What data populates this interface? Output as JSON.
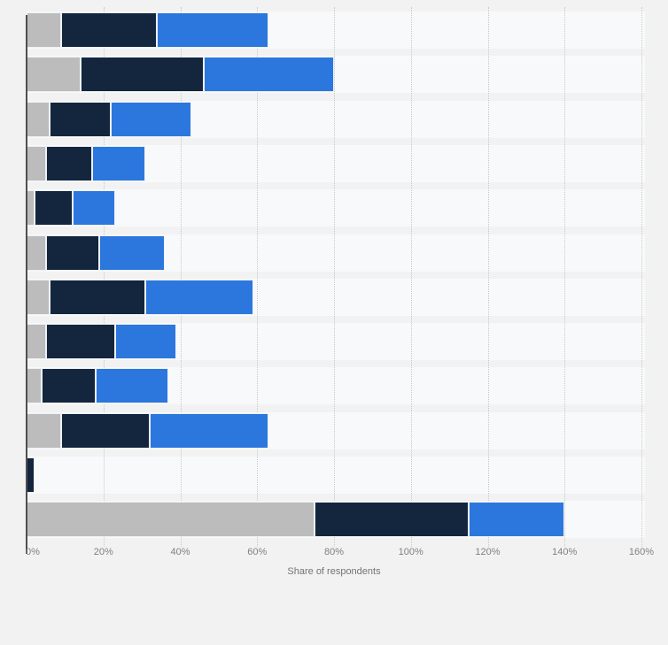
{
  "chart_data": {
    "type": "bar",
    "orientation": "horizontal",
    "stacked": true,
    "title": "",
    "xlabel": "Share of respondents",
    "x_ticks": [
      "0%",
      "20%",
      "40%",
      "60%",
      "80%",
      "100%",
      "120%",
      "140%",
      "160%"
    ],
    "xlim": [
      0,
      160
    ],
    "grid": "dotted-vertical",
    "legend": "none-visible",
    "category_labels_visible": false,
    "series": [
      {
        "name": "gray",
        "color": "#bcbcbc",
        "values": [
          9,
          14,
          6,
          5,
          2,
          5,
          6,
          5,
          4,
          9,
          0,
          75
        ]
      },
      {
        "name": "dark-blue",
        "color": "#13263d",
        "values": [
          25,
          32,
          16,
          12,
          10,
          14,
          25,
          18,
          14,
          23,
          2,
          40
        ]
      },
      {
        "name": "blue",
        "color": "#2c77dd",
        "values": [
          29,
          34,
          21,
          14,
          11,
          17,
          28,
          16,
          19,
          31,
          0,
          25
        ]
      }
    ]
  },
  "colors": {
    "page_bg": "#f2f2f3",
    "band_bg": "#f8f9fa",
    "grid_line": "#c9c9c9",
    "axis_line": "#4f4f4f",
    "tick_text": "#808080",
    "axis_title_text": "#737373"
  }
}
